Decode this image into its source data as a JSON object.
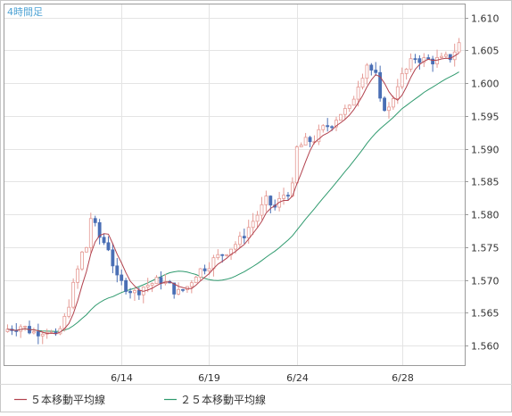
{
  "chart_data": {
    "type": "candlestick",
    "title": "4時間足",
    "y_ticks": [
      "1.610",
      "1.605",
      "1.600",
      "1.595",
      "1.590",
      "1.585",
      "1.580",
      "1.575",
      "1.570",
      "1.565",
      "1.560"
    ],
    "ylim": [
      1.557,
      1.612
    ],
    "x_ticks": [
      {
        "label": "6/14",
        "index": 26
      },
      {
        "label": "6/19",
        "index": 46
      },
      {
        "label": "6/24",
        "index": 66
      },
      {
        "label": "6/28",
        "index": 90
      }
    ],
    "grid": true,
    "legend": [
      {
        "label": "５本移動平均線",
        "color": "#b2424e"
      },
      {
        "label": "２５本移動平均線",
        "color": "#2f9a6e"
      }
    ],
    "colors": {
      "up": "#e59a94",
      "down": "#4a6fb5",
      "ma5": "#b2424e",
      "ma25": "#2f9a6e",
      "title": "#4fa3d4"
    },
    "x_count": 104,
    "anchors": [
      [
        0,
        1.5625
      ],
      [
        3,
        1.563
      ],
      [
        6,
        1.562
      ],
      [
        9,
        1.5625
      ],
      [
        11,
        1.561
      ],
      [
        13,
        1.564
      ],
      [
        15,
        1.569
      ],
      [
        17,
        1.574
      ],
      [
        18,
        1.575
      ],
      [
        19,
        1.5795
      ],
      [
        20,
        1.578
      ],
      [
        21,
        1.5765
      ],
      [
        23,
        1.575
      ],
      [
        25,
        1.57
      ],
      [
        27,
        1.569
      ],
      [
        29,
        1.568
      ],
      [
        31,
        1.569
      ],
      [
        33,
        1.5695
      ],
      [
        35,
        1.57
      ],
      [
        37,
        1.569
      ],
      [
        39,
        1.568
      ],
      [
        41,
        1.569
      ],
      [
        43,
        1.571
      ],
      [
        45,
        1.572
      ],
      [
        47,
        1.573
      ],
      [
        49,
        1.574
      ],
      [
        51,
        1.575
      ],
      [
        53,
        1.576
      ],
      [
        55,
        1.578
      ],
      [
        57,
        1.58
      ],
      [
        59,
        1.582
      ],
      [
        61,
        1.581
      ],
      [
        63,
        1.583
      ],
      [
        65,
        1.584
      ],
      [
        66,
        1.59
      ],
      [
        68,
        1.591
      ],
      [
        70,
        1.5915
      ],
      [
        72,
        1.593
      ],
      [
        74,
        1.594
      ],
      [
        76,
        1.5955
      ],
      [
        78,
        1.596
      ],
      [
        80,
        1.6
      ],
      [
        82,
        1.603
      ],
      [
        84,
        1.601
      ],
      [
        85,
        1.597
      ],
      [
        87,
        1.596
      ],
      [
        89,
        1.6
      ],
      [
        91,
        1.602
      ],
      [
        93,
        1.604
      ],
      [
        95,
        1.6035
      ],
      [
        97,
        1.6035
      ],
      [
        99,
        1.6035
      ],
      [
        101,
        1.604
      ],
      [
        103,
        1.606
      ]
    ]
  }
}
